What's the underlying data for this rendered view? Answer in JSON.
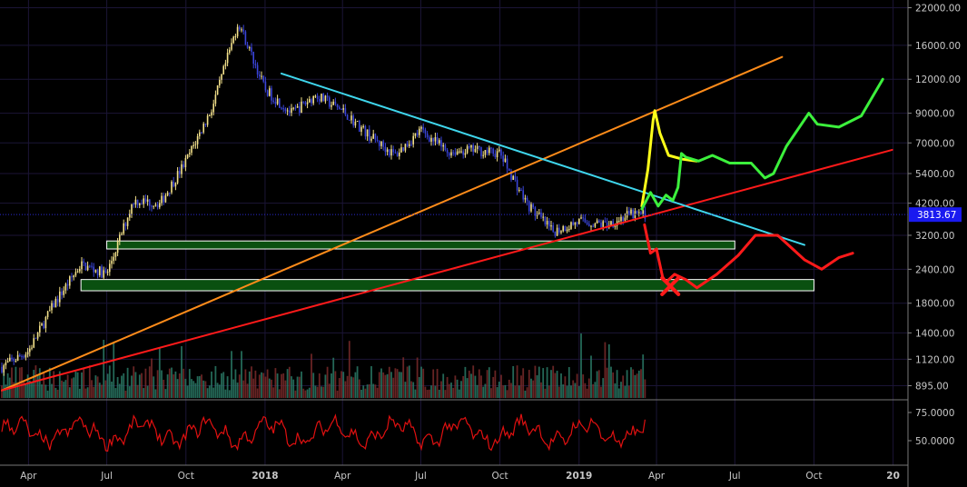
{
  "colors": {
    "background": "#000000",
    "grid": "#1b1536",
    "axis_text": "#c8c8c8",
    "candle_up": "#f2e08a",
    "candle_down": "#3a44d8",
    "price_marker": "#1a1af0",
    "support_zone_fill": "#0a5010",
    "support_zone_border": "#ffffff",
    "channel_orange": "#ff8c1a",
    "trend_red": "#ff1a1a",
    "resistance_cyan": "#3fd6ec",
    "scenario_yellow": "#ffff1a",
    "scenario_green": "#3cf03c",
    "scenario_red": "#ff1a1a",
    "volume_green": "#2a7a66",
    "volume_red": "#7a2a2a",
    "oscillator": "#e01010"
  },
  "chart_data": {
    "type": "candlestick",
    "title": "",
    "y_scale": "log",
    "price_axis_ticks": [
      "22000.00",
      "16000.00",
      "12000.00",
      "9000.00",
      "7000.00",
      "5400.00",
      "4200.00",
      "3200.00",
      "2400.00",
      "1800.00",
      "1400.00",
      "1120.00",
      "895.00"
    ],
    "current_price": "3813.67",
    "time_axis_labels": [
      {
        "label": "Apr",
        "bold": false
      },
      {
        "label": "Jul",
        "bold": false
      },
      {
        "label": "Oct",
        "bold": false
      },
      {
        "label": "2018",
        "bold": true
      },
      {
        "label": "Apr",
        "bold": false
      },
      {
        "label": "Jul",
        "bold": false
      },
      {
        "label": "Oct",
        "bold": false
      },
      {
        "label": "2019",
        "bold": true
      },
      {
        "label": "Apr",
        "bold": false
      },
      {
        "label": "Jul",
        "bold": false
      },
      {
        "label": "Oct",
        "bold": false
      },
      {
        "label": "20",
        "bold": true
      }
    ],
    "oscillator_ticks": [
      "75.0000",
      "50.0000"
    ],
    "price_path": [
      {
        "t": "2017-03",
        "price": 1050
      },
      {
        "t": "2017-04",
        "price": 1200
      },
      {
        "t": "2017-05",
        "price": 1800
      },
      {
        "t": "2017-06",
        "price": 2500
      },
      {
        "t": "2017-07",
        "price": 2300
      },
      {
        "t": "2017-08",
        "price": 4300
      },
      {
        "t": "2017-09",
        "price": 4200
      },
      {
        "t": "2017-10",
        "price": 6000
      },
      {
        "t": "2017-11",
        "price": 9500
      },
      {
        "t": "2017-12",
        "price": 19500
      },
      {
        "t": "2018-01",
        "price": 11000
      },
      {
        "t": "2018-02",
        "price": 9000
      },
      {
        "t": "2018-03",
        "price": 10500
      },
      {
        "t": "2018-04",
        "price": 9200
      },
      {
        "t": "2018-05",
        "price": 7500
      },
      {
        "t": "2018-06",
        "price": 6300
      },
      {
        "t": "2018-07",
        "price": 7800
      },
      {
        "t": "2018-08",
        "price": 6500
      },
      {
        "t": "2018-09",
        "price": 6600
      },
      {
        "t": "2018-10",
        "price": 6400
      },
      {
        "t": "2018-11",
        "price": 4200
      },
      {
        "t": "2018-12",
        "price": 3300
      },
      {
        "t": "2019-01",
        "price": 3600
      },
      {
        "t": "2019-02",
        "price": 3500
      },
      {
        "t": "2019-03",
        "price": 3813
      }
    ],
    "support_zones": [
      {
        "t_start": "2017-07",
        "t_end": "2019-07",
        "price_low": 2850,
        "price_high": 3050
      },
      {
        "t_start": "2017-06",
        "t_end": "2019-10",
        "price_low": 2000,
        "price_high": 2200
      }
    ]
  }
}
